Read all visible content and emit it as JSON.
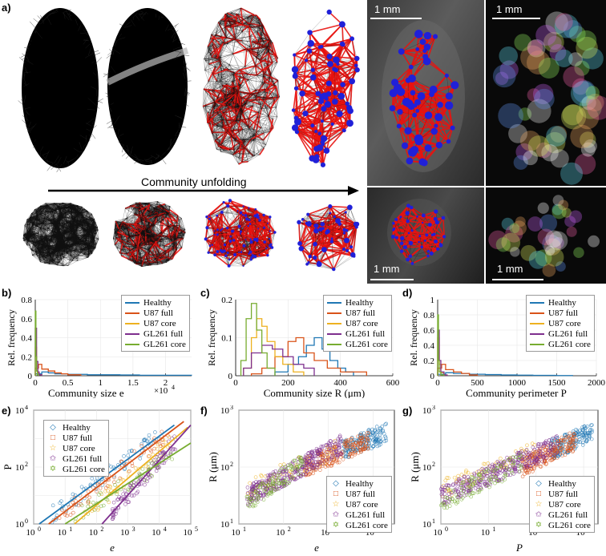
{
  "panels": {
    "a": "a)",
    "b": "b)",
    "c": "c)",
    "d": "d)",
    "e": "e)",
    "f": "f)",
    "g": "g)"
  },
  "panel_a": {
    "arrow_label": "Community unfolding",
    "scale_bars": [
      "1 mm",
      "1 mm",
      "1 mm",
      "1 mm"
    ]
  },
  "colors": {
    "healthy": "#1f77b4",
    "u87_full": "#d95319",
    "u87_core": "#edb120",
    "gl261_full": "#7e2f8e",
    "gl261_core": "#77ac30",
    "network_red": "#e8130f",
    "node_blue": "#2020d8"
  },
  "legend": [
    "Healthy",
    "U87 full",
    "U87 core",
    "GL261 full",
    "GL261 core"
  ],
  "chart_data": [
    {
      "id": "b",
      "type": "line",
      "title": "",
      "xlabel": "Community size e ×10^4",
      "xlabel_main": "Community size e",
      "xlabel_exp": "×10",
      "ylabel": "Rel. frequency",
      "xlim": [
        0,
        2.4
      ],
      "ylim": [
        0,
        0.8
      ],
      "xticks": [
        "0",
        "0.5",
        "1",
        "1.5",
        "2"
      ],
      "xtick_vals": [
        0,
        0.5,
        1,
        1.5,
        2
      ],
      "yticks": [
        "0",
        "0.2",
        "0.4",
        "0.6",
        "0.8"
      ],
      "ytick_vals": [
        0,
        0.2,
        0.4,
        0.6,
        0.8
      ],
      "series": [
        {
          "name": "Healthy",
          "x": [
            0,
            0.1,
            0.2,
            0.3,
            0.5,
            0.8,
            1.0,
            1.3,
            1.6,
            2.0,
            2.4
          ],
          "values": [
            0.02,
            0.04,
            0.03,
            0.02,
            0.015,
            0.01,
            0.01,
            0.008,
            0.005,
            0.005,
            0.002
          ]
        },
        {
          "name": "U87 full",
          "x": [
            0,
            0.05,
            0.1,
            0.2,
            0.3,
            0.4,
            0.5,
            0.7
          ],
          "values": [
            0.08,
            0.12,
            0.07,
            0.05,
            0.03,
            0.02,
            0.01,
            0.0
          ]
        },
        {
          "name": "U87 core",
          "x": [
            0,
            0.02,
            0.04,
            0.06,
            0.1
          ],
          "values": [
            0.3,
            0.1,
            0.03,
            0.01,
            0.0
          ]
        },
        {
          "name": "GL261 full",
          "x": [
            0,
            0.02,
            0.04,
            0.06,
            0.1
          ],
          "values": [
            0.5,
            0.15,
            0.04,
            0.01,
            0.0
          ]
        },
        {
          "name": "GL261 core",
          "x": [
            0,
            0.01,
            0.02,
            0.03,
            0.05
          ],
          "values": [
            0.68,
            0.2,
            0.05,
            0.01,
            0.0
          ]
        }
      ],
      "legend": "top-right"
    },
    {
      "id": "c",
      "type": "line",
      "xlabel": "Community size R (μm)",
      "ylabel": "Rel. frequency",
      "xlim": [
        0,
        600
      ],
      "ylim": [
        0,
        0.2
      ],
      "xticks": [
        "0",
        "200",
        "400",
        "600"
      ],
      "xtick_vals": [
        0,
        200,
        400,
        600
      ],
      "yticks": [
        "0",
        "0.1",
        "0.2"
      ],
      "ytick_vals": [
        0,
        0.1,
        0.2
      ],
      "series": [
        {
          "name": "Healthy",
          "x": [
            150,
            200,
            240,
            270,
            300,
            330,
            360,
            390,
            420,
            450
          ],
          "values": [
            0.01,
            0.03,
            0.05,
            0.08,
            0.1,
            0.07,
            0.04,
            0.02,
            0.01,
            0.0
          ]
        },
        {
          "name": "U87 full",
          "x": [
            60,
            100,
            150,
            200,
            230,
            260,
            300,
            350,
            400,
            500
          ],
          "values": [
            0.005,
            0.02,
            0.05,
            0.09,
            0.1,
            0.06,
            0.04,
            0.02,
            0.01,
            0.0
          ]
        },
        {
          "name": "U87 core",
          "x": [
            30,
            60,
            80,
            100,
            120,
            150,
            180,
            220,
            260
          ],
          "values": [
            0.02,
            0.1,
            0.15,
            0.13,
            0.09,
            0.05,
            0.03,
            0.01,
            0.0
          ]
        },
        {
          "name": "GL261 full",
          "x": [
            30,
            60,
            100,
            140,
            180,
            220,
            260,
            300
          ],
          "values": [
            0.02,
            0.06,
            0.08,
            0.07,
            0.05,
            0.03,
            0.02,
            0.0
          ]
        },
        {
          "name": "GL261 core",
          "x": [
            20,
            40,
            60,
            80,
            100,
            120,
            150
          ],
          "values": [
            0.04,
            0.15,
            0.19,
            0.12,
            0.06,
            0.02,
            0.0
          ]
        }
      ],
      "legend": "top-right"
    },
    {
      "id": "d",
      "type": "line",
      "xlabel": "Community perimeter P",
      "ylabel": "Rel. frequency",
      "xlim": [
        0,
        2000
      ],
      "ylim": [
        0,
        1
      ],
      "xticks": [
        "0",
        "500",
        "1000",
        "1500",
        "2000"
      ],
      "xtick_vals": [
        0,
        500,
        1000,
        1500,
        2000
      ],
      "yticks": [
        "0",
        "0.2",
        "0.4",
        "0.6",
        "0.8",
        "1"
      ],
      "ytick_vals": [
        0,
        0.2,
        0.4,
        0.6,
        0.8,
        1
      ],
      "series": [
        {
          "name": "Healthy",
          "x": [
            0,
            100,
            200,
            400,
            600,
            800,
            1000,
            1200,
            1500,
            1700
          ],
          "values": [
            0.02,
            0.04,
            0.03,
            0.02,
            0.015,
            0.01,
            0.008,
            0.005,
            0.003,
            0.0
          ]
        },
        {
          "name": "U87 full",
          "x": [
            0,
            50,
            100,
            200,
            300,
            400,
            500
          ],
          "values": [
            0.1,
            0.15,
            0.08,
            0.05,
            0.03,
            0.01,
            0.0
          ]
        },
        {
          "name": "U87 core",
          "x": [
            0,
            20,
            40,
            80,
            120
          ],
          "values": [
            0.5,
            0.15,
            0.04,
            0.01,
            0.0
          ]
        },
        {
          "name": "GL261 full",
          "x": [
            0,
            20,
            40,
            80,
            120
          ],
          "values": [
            0.6,
            0.2,
            0.05,
            0.01,
            0.0
          ]
        },
        {
          "name": "GL261 core",
          "x": [
            0,
            10,
            20,
            40,
            80
          ],
          "values": [
            0.8,
            0.2,
            0.05,
            0.01,
            0.0
          ]
        }
      ],
      "legend": "top-right"
    },
    {
      "id": "e",
      "type": "scatter",
      "xlabel": "e",
      "ylabel": "P",
      "xscale": "log",
      "yscale": "log",
      "xlim": [
        1,
        100000
      ],
      "ylim": [
        1,
        10000
      ],
      "xticks": [
        "10^0",
        "10^1",
        "10^2",
        "10^3",
        "10^4",
        "10^5"
      ],
      "yticks": [
        "10^0",
        "10^2",
        "10^4"
      ],
      "series": [
        {
          "name": "Healthy",
          "marker": "diamond",
          "fit": [
            [
              1.5,
              1
            ],
            [
              30000,
              3000
            ]
          ]
        },
        {
          "name": "U87 full",
          "marker": "square",
          "fit": [
            [
              3,
              1
            ],
            [
              60000,
              4000
            ]
          ]
        },
        {
          "name": "U87 core",
          "marker": "star",
          "fit": [
            [
              20,
              1
            ],
            [
              80000,
              2500
            ]
          ]
        },
        {
          "name": "GL261 full",
          "marker": "pentagram",
          "fit": [
            [
              150,
              1
            ],
            [
              100000,
              3000
            ]
          ]
        },
        {
          "name": "GL261 core",
          "marker": "hexagram",
          "fit": [
            [
              10,
              1
            ],
            [
              100000,
              700
            ]
          ]
        }
      ],
      "legend": "top-left"
    },
    {
      "id": "f",
      "type": "scatter",
      "xlabel": "e",
      "ylabel": "R (μm)",
      "xscale": "log",
      "yscale": "log",
      "xlim": [
        10,
        30000
      ],
      "ylim": [
        10,
        1000
      ],
      "xticks": [
        "10^1",
        "10^2",
        "10^3",
        "10^4"
      ],
      "yticks": [
        "10^1",
        "10^2",
        "10^3"
      ],
      "series": [
        {
          "name": "Healthy",
          "marker": "diamond",
          "xrange": [
            2000,
            20000
          ],
          "yrange": [
            200,
            400
          ]
        },
        {
          "name": "U87 full",
          "marker": "square",
          "xrange": [
            300,
            8000
          ],
          "yrange": [
            100,
            300
          ]
        },
        {
          "name": "U87 core",
          "marker": "star",
          "xrange": [
            15,
            1500
          ],
          "yrange": [
            40,
            200
          ]
        },
        {
          "name": "GL261 full",
          "marker": "pentagram",
          "xrange": [
            15,
            2000
          ],
          "yrange": [
            30,
            250
          ]
        },
        {
          "name": "GL261 core",
          "marker": "hexagram",
          "xrange": [
            15,
            300
          ],
          "yrange": [
            25,
            120
          ]
        }
      ],
      "legend": "bottom-right"
    },
    {
      "id": "g",
      "type": "scatter",
      "xlabel": "P",
      "ylabel": "R (μm)",
      "xscale": "log",
      "yscale": "log",
      "xlim": [
        1,
        2000
      ],
      "ylim": [
        10,
        1000
      ],
      "xticks": [
        "10^0",
        "10^1",
        "10^2",
        "10^3"
      ],
      "yticks": [
        "10^1",
        "10^2",
        "10^3"
      ],
      "series": [
        {
          "name": "Healthy",
          "marker": "diamond",
          "xrange": [
            200,
            1500
          ],
          "yrange": [
            200,
            400
          ]
        },
        {
          "name": "U87 full",
          "marker": "square",
          "xrange": [
            50,
            700
          ],
          "yrange": [
            100,
            300
          ]
        },
        {
          "name": "U87 core",
          "marker": "star",
          "xrange": [
            1,
            100
          ],
          "yrange": [
            40,
            200
          ]
        },
        {
          "name": "GL261 full",
          "marker": "pentagram",
          "xrange": [
            1,
            300
          ],
          "yrange": [
            30,
            250
          ]
        },
        {
          "name": "GL261 core",
          "marker": "hexagram",
          "xrange": [
            1,
            50
          ],
          "yrange": [
            25,
            120
          ]
        }
      ],
      "legend": "bottom-right"
    }
  ]
}
